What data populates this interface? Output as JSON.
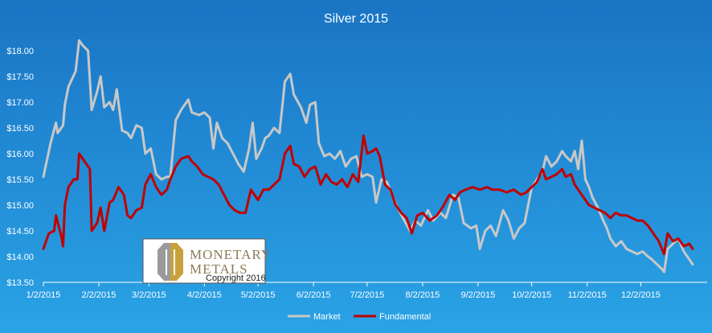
{
  "chart_data": {
    "type": "line",
    "title": "Silver 2015",
    "ylim": [
      13.5,
      18.0
    ],
    "y_ticks": [
      13.5,
      14.0,
      14.5,
      15.0,
      15.5,
      16.0,
      16.5,
      17.0,
      17.5,
      18.0
    ],
    "y_tick_labels": [
      "$13.50",
      "$14.00",
      "$14.50",
      "$15.00",
      "$15.50",
      "$16.00",
      "$16.50",
      "$17.00",
      "$17.50",
      "$18.00"
    ],
    "x_tick_labels": [
      "1/2/2015",
      "2/2/2015",
      "3/2/2015",
      "4/2/2015",
      "5/2/2015",
      "6/2/2015",
      "7/2/2015",
      "8/2/2015",
      "9/2/2015",
      "10/2/2015",
      "11/2/2015",
      "12/2/2015"
    ],
    "x_tick_dates": [
      "2015-01-02",
      "2015-02-02",
      "2015-03-02",
      "2015-04-02",
      "2015-05-02",
      "2015-06-02",
      "2015-07-02",
      "2015-08-02",
      "2015-09-02",
      "2015-10-02",
      "2015-11-02",
      "2015-12-02"
    ],
    "grid": false,
    "legend_position": "bottom",
    "series": [
      {
        "name": "Market",
        "color": "#c8c8c8",
        "points": [
          [
            "2015-01-02",
            15.55
          ],
          [
            "2015-01-06",
            16.2
          ],
          [
            "2015-01-09",
            16.6
          ],
          [
            "2015-01-10",
            16.4
          ],
          [
            "2015-01-13",
            16.55
          ],
          [
            "2015-01-14",
            16.95
          ],
          [
            "2015-01-16",
            17.3
          ],
          [
            "2015-01-20",
            17.6
          ],
          [
            "2015-01-22",
            18.2
          ],
          [
            "2015-01-24",
            18.1
          ],
          [
            "2015-01-27",
            18.0
          ],
          [
            "2015-01-29",
            16.85
          ],
          [
            "2015-02-01",
            17.2
          ],
          [
            "2015-02-03",
            17.5
          ],
          [
            "2015-02-05",
            16.9
          ],
          [
            "2015-02-08",
            17.0
          ],
          [
            "2015-02-10",
            16.85
          ],
          [
            "2015-02-12",
            17.25
          ],
          [
            "2015-02-15",
            16.45
          ],
          [
            "2015-02-18",
            16.4
          ],
          [
            "2015-02-20",
            16.3
          ],
          [
            "2015-02-23",
            16.55
          ],
          [
            "2015-02-26",
            16.5
          ],
          [
            "2015-02-28",
            16.0
          ],
          [
            "2015-03-03",
            16.1
          ],
          [
            "2015-03-06",
            15.6
          ],
          [
            "2015-03-09",
            15.5
          ],
          [
            "2015-03-12",
            15.55
          ],
          [
            "2015-03-14",
            15.55
          ],
          [
            "2015-03-17",
            16.65
          ],
          [
            "2015-03-20",
            16.85
          ],
          [
            "2015-03-24",
            17.05
          ],
          [
            "2015-03-26",
            16.8
          ],
          [
            "2015-03-30",
            16.75
          ],
          [
            "2015-04-02",
            16.8
          ],
          [
            "2015-04-05",
            16.7
          ],
          [
            "2015-04-07",
            16.1
          ],
          [
            "2015-04-09",
            16.6
          ],
          [
            "2015-04-12",
            16.3
          ],
          [
            "2015-04-15",
            16.2
          ],
          [
            "2015-04-18",
            16.0
          ],
          [
            "2015-04-21",
            15.8
          ],
          [
            "2015-04-24",
            15.65
          ],
          [
            "2015-04-27",
            16.1
          ],
          [
            "2015-04-29",
            16.6
          ],
          [
            "2015-05-01",
            15.9
          ],
          [
            "2015-05-04",
            16.1
          ],
          [
            "2015-05-06",
            16.3
          ],
          [
            "2015-05-08",
            16.35
          ],
          [
            "2015-05-11",
            16.5
          ],
          [
            "2015-05-14",
            16.4
          ],
          [
            "2015-05-17",
            17.4
          ],
          [
            "2015-05-20",
            17.55
          ],
          [
            "2015-05-22",
            17.15
          ],
          [
            "2015-05-26",
            16.9
          ],
          [
            "2015-05-29",
            16.6
          ],
          [
            "2015-05-31",
            16.95
          ],
          [
            "2015-06-03",
            17.0
          ],
          [
            "2015-06-05",
            16.2
          ],
          [
            "2015-06-08",
            15.95
          ],
          [
            "2015-06-11",
            16.0
          ],
          [
            "2015-06-14",
            15.9
          ],
          [
            "2015-06-17",
            16.05
          ],
          [
            "2015-06-20",
            15.75
          ],
          [
            "2015-06-23",
            15.9
          ],
          [
            "2015-06-26",
            15.95
          ],
          [
            "2015-06-29",
            15.55
          ],
          [
            "2015-07-02",
            15.6
          ],
          [
            "2015-07-05",
            15.55
          ],
          [
            "2015-07-07",
            15.05
          ],
          [
            "2015-07-10",
            15.5
          ],
          [
            "2015-07-13",
            15.45
          ],
          [
            "2015-07-16",
            15.2
          ],
          [
            "2015-07-19",
            14.95
          ],
          [
            "2015-07-22",
            14.75
          ],
          [
            "2015-07-26",
            14.5
          ],
          [
            "2015-07-29",
            14.7
          ],
          [
            "2015-08-01",
            14.6
          ],
          [
            "2015-08-05",
            14.9
          ],
          [
            "2015-08-08",
            14.7
          ],
          [
            "2015-08-12",
            14.85
          ],
          [
            "2015-08-15",
            14.75
          ],
          [
            "2015-08-19",
            15.2
          ],
          [
            "2015-08-22",
            15.15
          ],
          [
            "2015-08-25",
            14.65
          ],
          [
            "2015-08-29",
            14.55
          ],
          [
            "2015-09-01",
            14.6
          ],
          [
            "2015-09-03",
            14.15
          ],
          [
            "2015-09-06",
            14.5
          ],
          [
            "2015-09-09",
            14.6
          ],
          [
            "2015-09-12",
            14.4
          ],
          [
            "2015-09-16",
            14.9
          ],
          [
            "2015-09-19",
            14.7
          ],
          [
            "2015-09-22",
            14.35
          ],
          [
            "2015-09-25",
            14.55
          ],
          [
            "2015-09-28",
            14.65
          ],
          [
            "2015-10-02",
            15.35
          ],
          [
            "2015-10-05",
            15.5
          ],
          [
            "2015-10-08",
            15.65
          ],
          [
            "2015-10-10",
            15.95
          ],
          [
            "2015-10-13",
            15.75
          ],
          [
            "2015-10-16",
            15.85
          ],
          [
            "2015-10-19",
            16.05
          ],
          [
            "2015-10-21",
            15.95
          ],
          [
            "2015-10-24",
            15.85
          ],
          [
            "2015-10-26",
            16.05
          ],
          [
            "2015-10-28",
            15.7
          ],
          [
            "2015-10-30",
            16.25
          ],
          [
            "2015-11-01",
            15.5
          ],
          [
            "2015-11-03",
            15.35
          ],
          [
            "2015-11-05",
            15.15
          ],
          [
            "2015-11-08",
            14.95
          ],
          [
            "2015-11-11",
            14.7
          ],
          [
            "2015-11-13",
            14.55
          ],
          [
            "2015-11-15",
            14.35
          ],
          [
            "2015-11-18",
            14.2
          ],
          [
            "2015-11-21",
            14.3
          ],
          [
            "2015-11-24",
            14.15
          ],
          [
            "2015-11-27",
            14.1
          ],
          [
            "2015-11-30",
            14.05
          ],
          [
            "2015-12-03",
            14.1
          ],
          [
            "2015-12-06",
            14.0
          ],
          [
            "2015-12-08",
            13.95
          ],
          [
            "2015-12-11",
            13.85
          ],
          [
            "2015-12-14",
            13.75
          ],
          [
            "2015-12-15",
            13.7
          ],
          [
            "2015-12-17",
            14.15
          ],
          [
            "2015-12-20",
            14.25
          ],
          [
            "2015-12-23",
            14.35
          ],
          [
            "2015-12-26",
            14.1
          ],
          [
            "2015-12-29",
            13.95
          ],
          [
            "2015-12-31",
            13.85
          ]
        ]
      },
      {
        "name": "Fundamental",
        "color": "#c00000",
        "points": [
          [
            "2015-01-02",
            14.15
          ],
          [
            "2015-01-05",
            14.45
          ],
          [
            "2015-01-08",
            14.5
          ],
          [
            "2015-01-09",
            14.8
          ],
          [
            "2015-01-12",
            14.4
          ],
          [
            "2015-01-13",
            14.2
          ],
          [
            "2015-01-14",
            15.0
          ],
          [
            "2015-01-16",
            15.35
          ],
          [
            "2015-01-19",
            15.5
          ],
          [
            "2015-01-21",
            15.5
          ],
          [
            "2015-01-22",
            16.0
          ],
          [
            "2015-01-25",
            15.85
          ],
          [
            "2015-01-28",
            15.7
          ],
          [
            "2015-01-29",
            14.5
          ],
          [
            "2015-02-01",
            14.65
          ],
          [
            "2015-02-03",
            14.95
          ],
          [
            "2015-02-05",
            14.5
          ],
          [
            "2015-02-08",
            15.05
          ],
          [
            "2015-02-10",
            15.1
          ],
          [
            "2015-02-13",
            15.35
          ],
          [
            "2015-02-16",
            15.2
          ],
          [
            "2015-02-18",
            14.8
          ],
          [
            "2015-02-20",
            14.75
          ],
          [
            "2015-02-23",
            14.9
          ],
          [
            "2015-02-26",
            14.95
          ],
          [
            "2015-02-28",
            15.4
          ],
          [
            "2015-03-03",
            15.6
          ],
          [
            "2015-03-06",
            15.35
          ],
          [
            "2015-03-09",
            15.2
          ],
          [
            "2015-03-12",
            15.3
          ],
          [
            "2015-03-14",
            15.5
          ],
          [
            "2015-03-17",
            15.75
          ],
          [
            "2015-03-20",
            15.9
          ],
          [
            "2015-03-24",
            15.95
          ],
          [
            "2015-03-26",
            15.85
          ],
          [
            "2015-03-29",
            15.75
          ],
          [
            "2015-04-01",
            15.6
          ],
          [
            "2015-04-04",
            15.55
          ],
          [
            "2015-04-07",
            15.5
          ],
          [
            "2015-04-10",
            15.4
          ],
          [
            "2015-04-13",
            15.2
          ],
          [
            "2015-04-16",
            15.0
          ],
          [
            "2015-04-19",
            14.9
          ],
          [
            "2015-04-22",
            14.85
          ],
          [
            "2015-04-25",
            14.85
          ],
          [
            "2015-04-28",
            15.3
          ],
          [
            "2015-04-30",
            15.2
          ],
          [
            "2015-05-02",
            15.1
          ],
          [
            "2015-05-05",
            15.3
          ],
          [
            "2015-05-08",
            15.3
          ],
          [
            "2015-05-11",
            15.4
          ],
          [
            "2015-05-14",
            15.5
          ],
          [
            "2015-05-17",
            16.0
          ],
          [
            "2015-05-20",
            16.15
          ],
          [
            "2015-05-22",
            15.8
          ],
          [
            "2015-05-25",
            15.75
          ],
          [
            "2015-05-28",
            15.55
          ],
          [
            "2015-05-31",
            15.7
          ],
          [
            "2015-06-03",
            15.75
          ],
          [
            "2015-06-06",
            15.4
          ],
          [
            "2015-06-09",
            15.6
          ],
          [
            "2015-06-12",
            15.45
          ],
          [
            "2015-06-15",
            15.4
          ],
          [
            "2015-06-18",
            15.5
          ],
          [
            "2015-06-21",
            15.35
          ],
          [
            "2015-06-24",
            15.6
          ],
          [
            "2015-06-27",
            15.45
          ],
          [
            "2015-06-30",
            16.35
          ],
          [
            "2015-07-02",
            16.0
          ],
          [
            "2015-07-05",
            16.05
          ],
          [
            "2015-07-07",
            16.1
          ],
          [
            "2015-07-09",
            15.95
          ],
          [
            "2015-07-12",
            15.4
          ],
          [
            "2015-07-15",
            15.3
          ],
          [
            "2015-07-18",
            15.0
          ],
          [
            "2015-07-21",
            14.85
          ],
          [
            "2015-07-24",
            14.75
          ],
          [
            "2015-07-27",
            14.45
          ],
          [
            "2015-07-30",
            14.8
          ],
          [
            "2015-08-02",
            14.85
          ],
          [
            "2015-08-06",
            14.7
          ],
          [
            "2015-08-10",
            14.8
          ],
          [
            "2015-08-13",
            14.95
          ],
          [
            "2015-08-17",
            15.2
          ],
          [
            "2015-08-20",
            15.1
          ],
          [
            "2015-08-23",
            15.25
          ],
          [
            "2015-08-26",
            15.3
          ],
          [
            "2015-08-30",
            15.35
          ],
          [
            "2015-09-03",
            15.3
          ],
          [
            "2015-09-07",
            15.35
          ],
          [
            "2015-09-10",
            15.3
          ],
          [
            "2015-09-14",
            15.3
          ],
          [
            "2015-09-18",
            15.25
          ],
          [
            "2015-09-22",
            15.3
          ],
          [
            "2015-09-26",
            15.2
          ],
          [
            "2015-09-29",
            15.25
          ],
          [
            "2015-10-02",
            15.35
          ],
          [
            "2015-10-05",
            15.45
          ],
          [
            "2015-10-08",
            15.7
          ],
          [
            "2015-10-10",
            15.5
          ],
          [
            "2015-10-13",
            15.55
          ],
          [
            "2015-10-16",
            15.6
          ],
          [
            "2015-10-19",
            15.7
          ],
          [
            "2015-10-21",
            15.55
          ],
          [
            "2015-10-24",
            15.6
          ],
          [
            "2015-10-26",
            15.4
          ],
          [
            "2015-10-28",
            15.3
          ],
          [
            "2015-10-31",
            15.15
          ],
          [
            "2015-11-03",
            15.0
          ],
          [
            "2015-11-06",
            14.95
          ],
          [
            "2015-11-09",
            14.9
          ],
          [
            "2015-11-12",
            14.85
          ],
          [
            "2015-11-15",
            14.75
          ],
          [
            "2015-11-18",
            14.85
          ],
          [
            "2015-11-21",
            14.8
          ],
          [
            "2015-11-24",
            14.8
          ],
          [
            "2015-11-27",
            14.75
          ],
          [
            "2015-11-30",
            14.7
          ],
          [
            "2015-12-03",
            14.7
          ],
          [
            "2015-12-06",
            14.6
          ],
          [
            "2015-12-09",
            14.45
          ],
          [
            "2015-12-12",
            14.3
          ],
          [
            "2015-12-15",
            14.05
          ],
          [
            "2015-12-17",
            14.45
          ],
          [
            "2015-12-20",
            14.3
          ],
          [
            "2015-12-23",
            14.35
          ],
          [
            "2015-12-26",
            14.2
          ],
          [
            "2015-12-29",
            14.25
          ],
          [
            "2015-12-31",
            14.15
          ]
        ]
      }
    ]
  },
  "logo": {
    "name_line1": "MONETARY",
    "name_line2": "METALS",
    "copyright": "Copyright 2016"
  },
  "colors": {
    "background_top": "#1a74c4",
    "background_bottom": "#2aa3e6",
    "axis": "#ffffff",
    "logo_gold": "#c8a13c",
    "logo_silver": "#9a9a9a"
  }
}
